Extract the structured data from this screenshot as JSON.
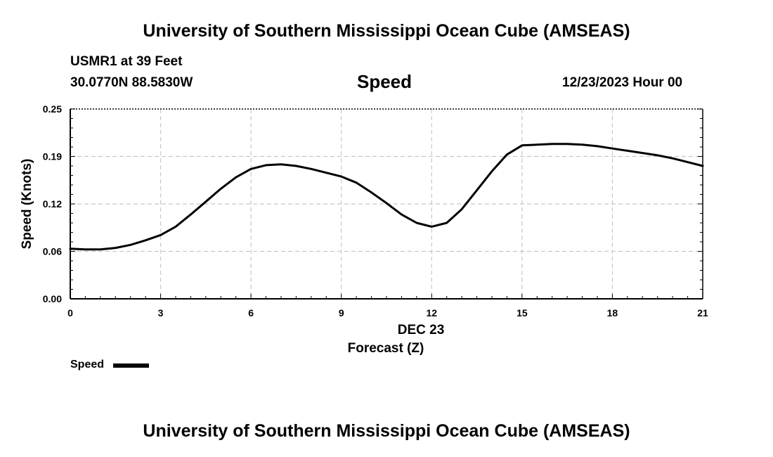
{
  "header": {
    "title": "University of Southern Mississippi Ocean Cube (AMSEAS)",
    "station": "USMR1 at 39 Feet",
    "coords": "30.0770N  88.5830W",
    "variable": "Speed",
    "datetime": "12/23/2023 Hour 00"
  },
  "footer": {
    "title": "University of Southern Mississippi Ocean Cube (AMSEAS)"
  },
  "legend": {
    "label": "Speed",
    "color": "#000000"
  },
  "chart_data": {
    "type": "line",
    "title": "Speed",
    "xlabel": "Forecast (Z)",
    "xlabel_date": "DEC 23",
    "ylabel": "Speed (Knots)",
    "xlim": [
      0,
      21
    ],
    "ylim": [
      0,
      0.25
    ],
    "xticks": [
      0,
      3,
      6,
      9,
      12,
      15,
      18,
      21
    ],
    "xtick_labels": [
      "0",
      "3",
      "6",
      "9",
      "12",
      "15",
      "18",
      "21"
    ],
    "yticks": [
      0.0,
      0.0625,
      0.125,
      0.1875,
      0.25
    ],
    "ytick_labels": [
      "0.00",
      "0.06",
      "0.12",
      "0.19",
      "0.25"
    ],
    "grid": true,
    "series": [
      {
        "name": "Speed",
        "color": "#000000",
        "x": [
          0,
          0.5,
          1,
          1.5,
          2,
          2.5,
          3,
          3.5,
          4,
          4.5,
          5,
          5.5,
          6,
          6.5,
          7,
          7.5,
          8,
          8.5,
          9,
          9.5,
          10,
          10.5,
          11,
          11.5,
          12,
          12.5,
          13,
          13.5,
          14,
          14.5,
          15,
          15.5,
          16,
          16.5,
          17,
          17.5,
          18,
          18.5,
          19,
          19.5,
          20,
          20.5,
          21
        ],
        "values": [
          0.066,
          0.065,
          0.065,
          0.067,
          0.071,
          0.077,
          0.084,
          0.095,
          0.111,
          0.128,
          0.145,
          0.16,
          0.171,
          0.176,
          0.177,
          0.175,
          0.171,
          0.166,
          0.161,
          0.153,
          0.14,
          0.126,
          0.111,
          0.1,
          0.095,
          0.1,
          0.118,
          0.143,
          0.168,
          0.19,
          0.202,
          0.203,
          0.204,
          0.204,
          0.203,
          0.201,
          0.198,
          0.195,
          0.192,
          0.189,
          0.185,
          0.18,
          0.175
        ]
      }
    ]
  }
}
